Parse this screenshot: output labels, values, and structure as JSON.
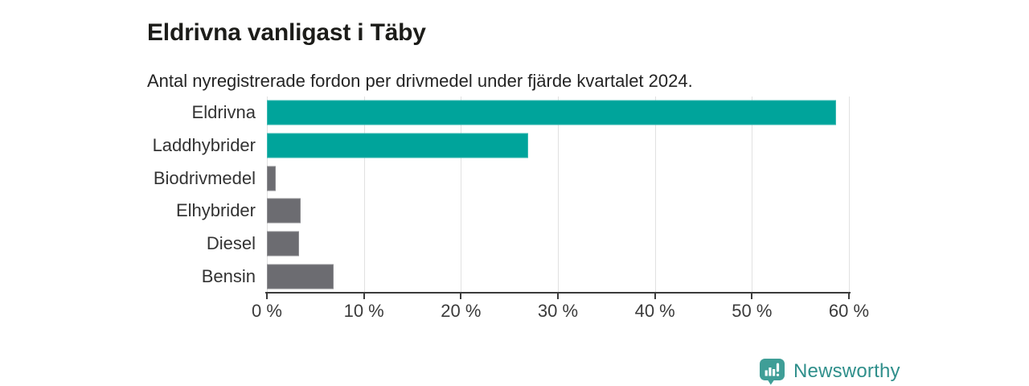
{
  "chart": {
    "title": "Eldrivna vanligast i Täby",
    "subtitle": "Antal nyregistrerade fordon per drivmedel under fjärde kvartalet 2024."
  },
  "chart_data": {
    "type": "bar",
    "orientation": "horizontal",
    "title": "Eldrivna vanligast i Täby",
    "subtitle": "Antal nyregistrerade fordon per drivmedel under fjärde kvartalet 2024.",
    "categories": [
      "Eldrivna",
      "Laddhybrider",
      "Biodrivmedel",
      "Elhybrider",
      "Diesel",
      "Bensin"
    ],
    "values": [
      58.7,
      26.9,
      0.9,
      3.5,
      3.3,
      6.9
    ],
    "unit": "%",
    "xlabel": "",
    "ylabel": "",
    "xlim": [
      0,
      60
    ],
    "x_tick_values": [
      0,
      10,
      20,
      30,
      40,
      50,
      60
    ],
    "x_tick_labels": [
      "0 %",
      "10 %",
      "20 %",
      "30 %",
      "40 %",
      "50 %",
      "60 %"
    ],
    "grid": true,
    "legend": "none",
    "bar_colors": [
      "#00a49b",
      "#00a49b",
      "#6c6c71",
      "#6c6c71",
      "#6c6c71",
      "#6c6c71"
    ],
    "highlight_color": "#00a49b",
    "default_color": "#6c6c71",
    "gridline_color": "#e1e1e1",
    "axis_color": "#3b3b3b"
  },
  "branding": {
    "logo_text": "Newsworthy",
    "logo_text_color": "#2f8f8b",
    "logo_icon_color": "#3f9e97",
    "logo_icon": "chart-speech-bubble-icon"
  }
}
